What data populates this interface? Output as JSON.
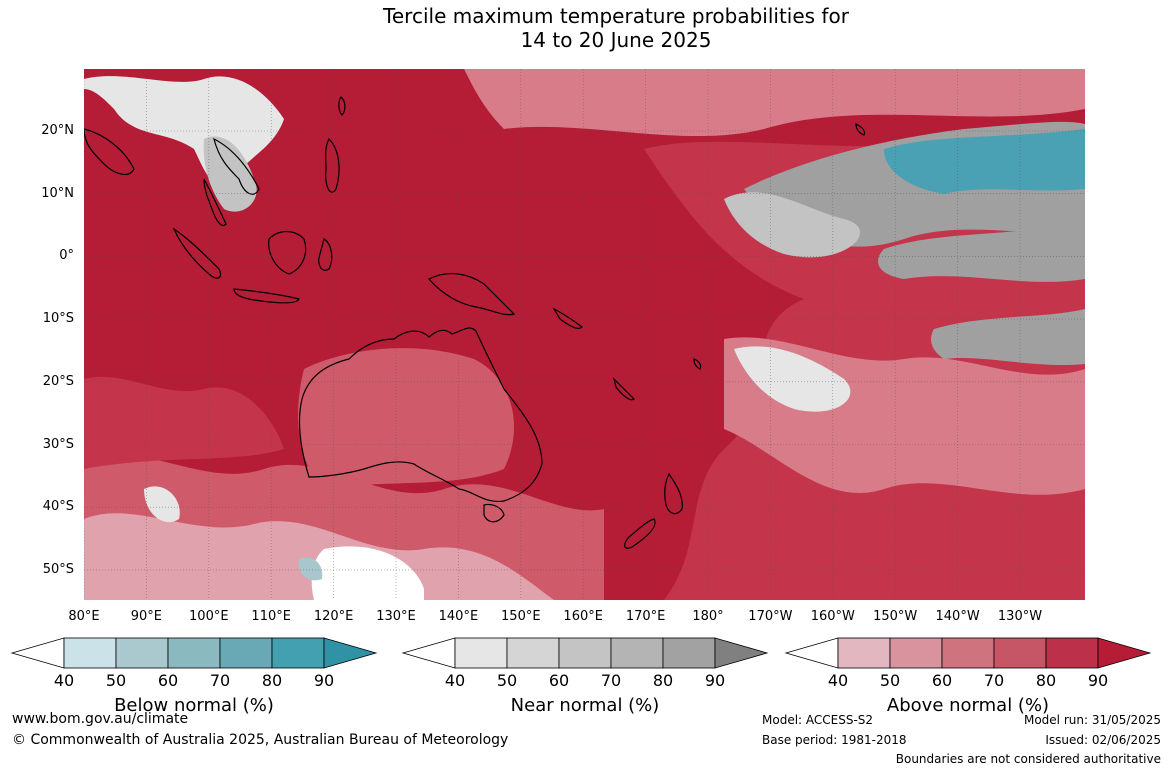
{
  "title": {
    "line1": "Tercile maximum temperature probabilities for",
    "line2": "14 to 20 June 2025"
  },
  "map": {
    "region": "Indo-Pacific / Australia",
    "lat_labels": [
      "20°N",
      "10°N",
      "0°",
      "10°S",
      "20°S",
      "30°S",
      "40°S",
      "50°S"
    ],
    "lon_labels": [
      "80°E",
      "90°E",
      "100°E",
      "110°E",
      "120°E",
      "130°E",
      "140°E",
      "150°E",
      "160°E",
      "170°E",
      "180°",
      "170°W",
      "160°W",
      "150°W",
      "140°W",
      "130°W"
    ],
    "dominant_category": "Above normal",
    "colors": {
      "above_90": "#b51c36",
      "above_80": "#c4354c",
      "above_70": "#cf5a6a",
      "above_60": "#d77c88",
      "above_50": "#e0a3ad",
      "near_80": "#a0a0a0",
      "near_60": "#c3c3c3",
      "near_40": "#e6e6e6",
      "below_70": "#4aa1b4",
      "below_50": "#a7c7cd",
      "white": "#ffffff",
      "coast": "#000000"
    }
  },
  "legends": [
    {
      "name": "Below normal (%)",
      "ticks": [
        "40",
        "50",
        "60",
        "70",
        "80",
        "90"
      ],
      "colors": [
        "#cbe2e8",
        "#a9c9ce",
        "#8ab9c0",
        "#69a9b6",
        "#43a0b1",
        "#3092a5"
      ]
    },
    {
      "name": "Near normal (%)",
      "ticks": [
        "40",
        "50",
        "60",
        "70",
        "80",
        "90"
      ],
      "colors": [
        "#e6e6e6",
        "#d5d5d5",
        "#c4c4c4",
        "#b4b4b4",
        "#a2a2a2",
        "#808080"
      ]
    },
    {
      "name": "Above normal (%)",
      "ticks": [
        "40",
        "50",
        "60",
        "70",
        "80",
        "90"
      ],
      "colors": [
        "#e2b7c0",
        "#d9939e",
        "#cf737f",
        "#c65566",
        "#bc3049",
        "#b71c37"
      ]
    }
  ],
  "footer": {
    "website": "www.bom.gov.au/climate",
    "copyright": "© Commonwealth of Australia 2025, Australian Bureau of Meteorology",
    "model": "Model: ACCESS-S2",
    "base_period": "Base period: 1981-2018",
    "model_run": "Model run: 31/05/2025",
    "issued": "Issued: 02/06/2025",
    "disclaimer": "Boundaries are not considered authoritative"
  }
}
